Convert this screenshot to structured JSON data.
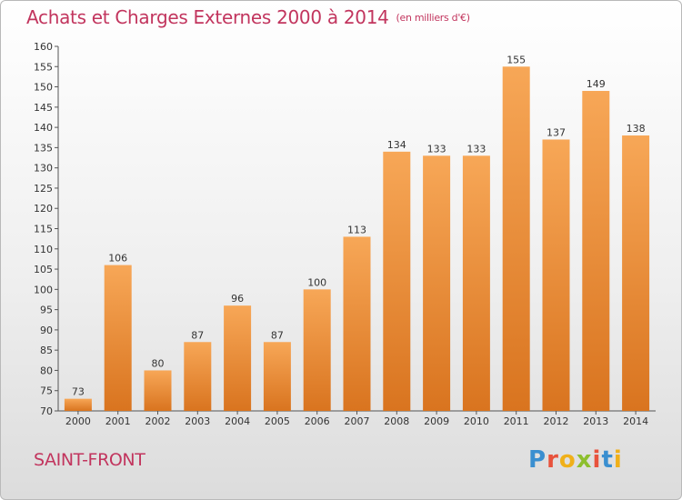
{
  "header": {
    "title": "Achats et Charges Externes 2000 à 2014",
    "subtitle": "(en milliers d'€)"
  },
  "footer": {
    "commune": "SAINT-FRONT",
    "brand_letters": [
      "P",
      "r",
      "o",
      "x",
      "i",
      "t",
      "i"
    ],
    "brand_colors": [
      "#3a8fd0",
      "#e8523c",
      "#f0b019",
      "#8dbf2e",
      "#e8523c",
      "#3a8fd0",
      "#f0b019"
    ]
  },
  "colors": {
    "title": "#c2355e",
    "bar_light": "#f7a757",
    "bar_dark": "#d9741f",
    "axis": "#555555",
    "grid": "#cfcfcf"
  },
  "chart_data": {
    "type": "bar",
    "title": "Achats et Charges Externes 2000 à 2014",
    "subtitle": "(en milliers d'€)",
    "categories": [
      "2000",
      "2001",
      "2002",
      "2003",
      "2004",
      "2005",
      "2006",
      "2007",
      "2008",
      "2009",
      "2010",
      "2011",
      "2012",
      "2013",
      "2014"
    ],
    "values": [
      73,
      106,
      80,
      87,
      96,
      87,
      100,
      113,
      134,
      133,
      133,
      155,
      137,
      149,
      138
    ],
    "ylim": [
      70,
      160
    ],
    "yticks": [
      70,
      75,
      80,
      85,
      90,
      95,
      100,
      105,
      110,
      115,
      120,
      125,
      130,
      135,
      140,
      145,
      150,
      155,
      160
    ],
    "grid": false,
    "data_labels": true
  }
}
